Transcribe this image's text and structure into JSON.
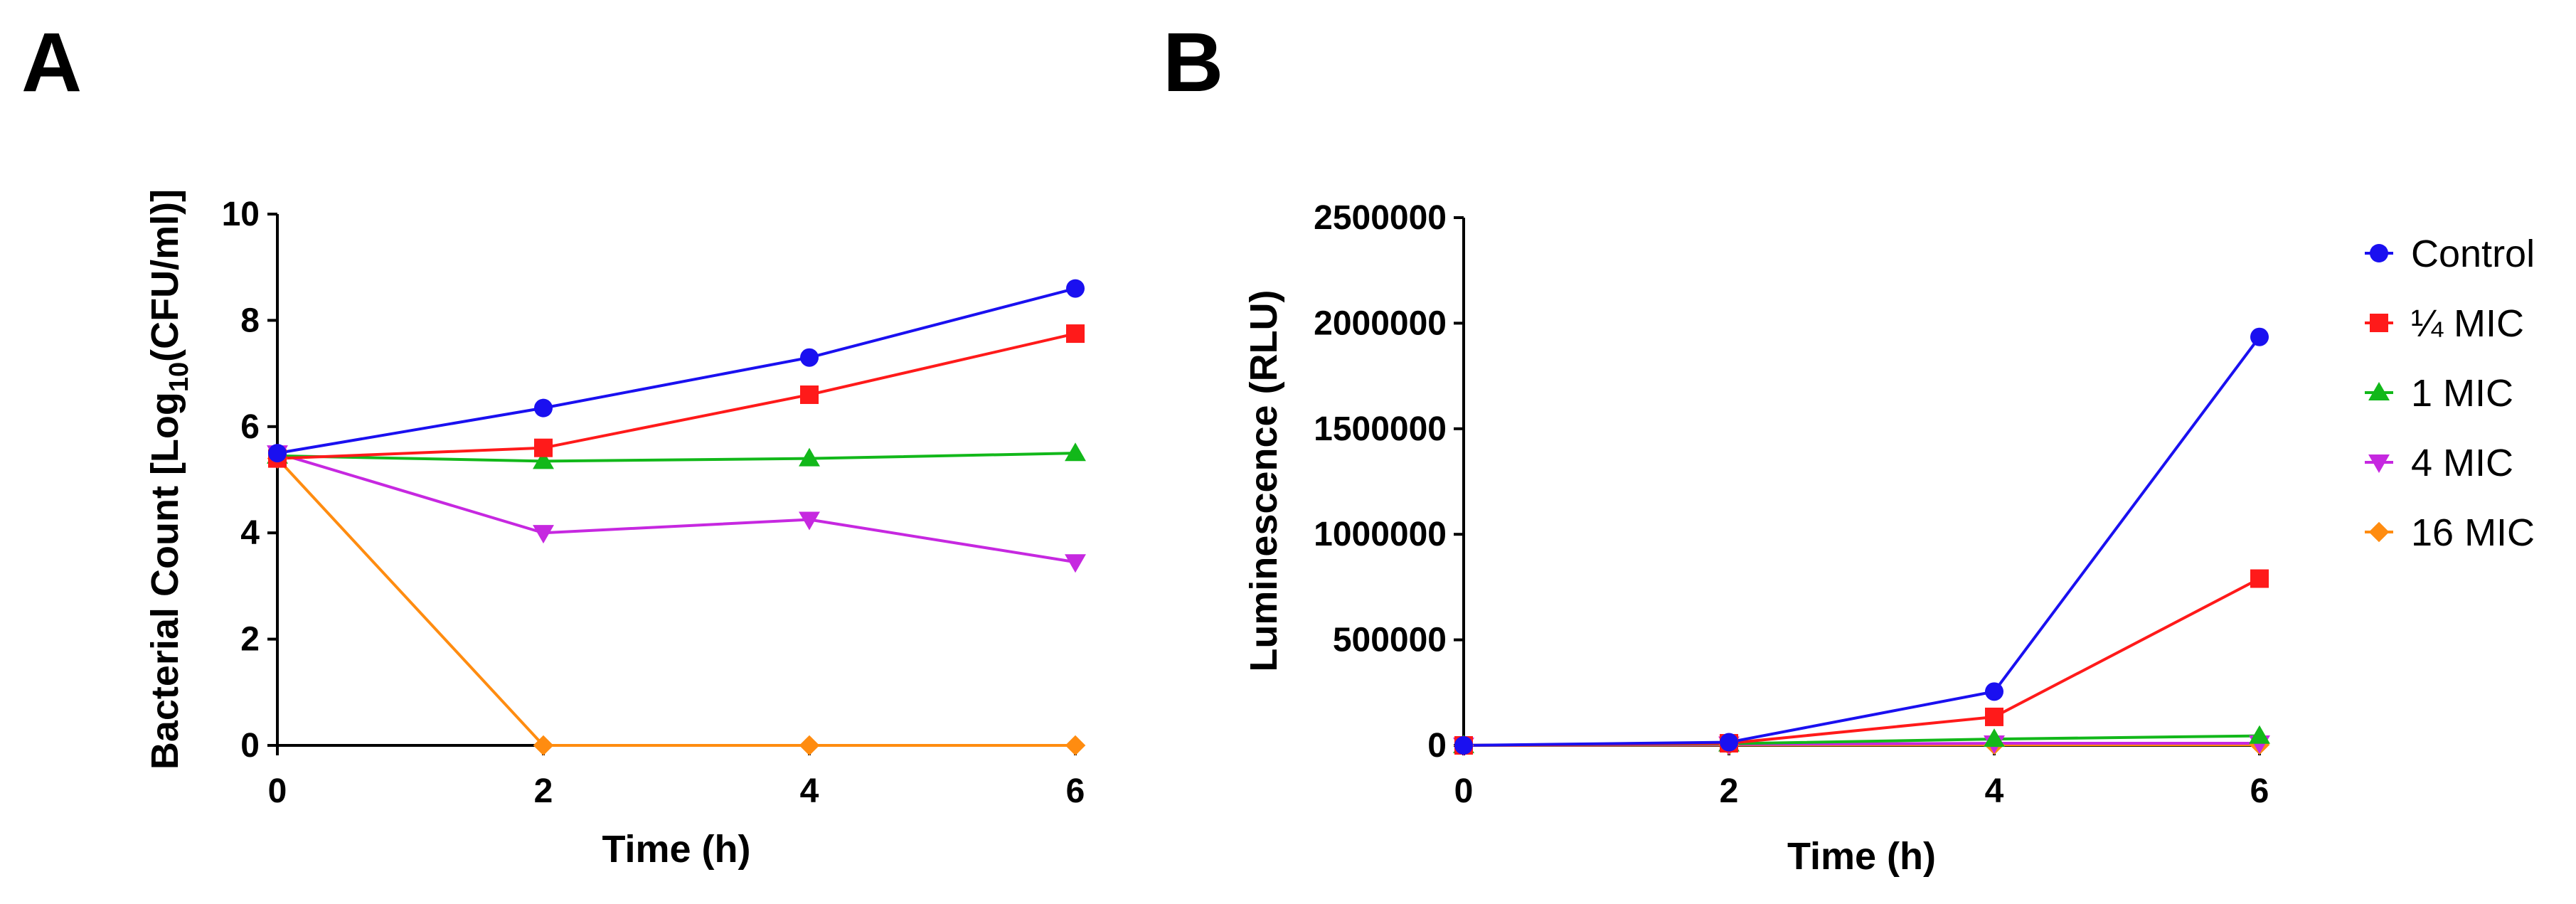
{
  "panels": {
    "a_label": "A",
    "b_label": "B"
  },
  "series_style": [
    {
      "name": "Control",
      "color": "#1a10f0",
      "marker": "circle"
    },
    {
      "name": "¼ MIC",
      "color": "#ff1a1a",
      "marker": "square"
    },
    {
      "name": "1 MIC",
      "color": "#12b81a",
      "marker": "triangle-up"
    },
    {
      "name": "4 MIC",
      "color": "#c628e0",
      "marker": "triangle-down"
    },
    {
      "name": "16 MIC",
      "color": "#ff8c10",
      "marker": "diamond"
    }
  ],
  "legend": {
    "position": "right",
    "entries": [
      "Control",
      "¼ MIC",
      "1 MIC",
      "4 MIC",
      "16 MIC"
    ]
  },
  "chart_data": [
    {
      "type": "line",
      "panel": "A",
      "title": "",
      "xlabel": "Time (h)",
      "ylabel_prefix": "Bacterial Count [Log",
      "ylabel_sub": "10",
      "ylabel_suffix": "(CFU/ml)]",
      "x": [
        0,
        2,
        4,
        6
      ],
      "xlim": [
        0,
        6
      ],
      "ylim": [
        0,
        10
      ],
      "xticks": [
        "0",
        "2",
        "4",
        "6"
      ],
      "yticks": [
        "0",
        "2",
        "4",
        "6",
        "8",
        "10"
      ],
      "grid": false,
      "series": [
        {
          "name": "Control",
          "values": [
            5.5,
            6.35,
            7.3,
            8.6
          ]
        },
        {
          "name": "¼ MIC",
          "values": [
            5.4,
            5.6,
            6.6,
            7.75
          ]
        },
        {
          "name": "1 MIC",
          "values": [
            5.45,
            5.35,
            5.4,
            5.5
          ]
        },
        {
          "name": "4 MIC",
          "values": [
            5.5,
            4.0,
            4.25,
            3.45
          ]
        },
        {
          "name": "16 MIC",
          "values": [
            5.4,
            0,
            0,
            0
          ]
        }
      ]
    },
    {
      "type": "line",
      "panel": "B",
      "title": "",
      "xlabel": "Time (h)",
      "ylabel": "Luminescence (RLU)",
      "x": [
        0,
        2,
        4,
        6
      ],
      "xlim": [
        0,
        6
      ],
      "ylim": [
        0,
        2500000
      ],
      "xticks": [
        "0",
        "2",
        "4",
        "6"
      ],
      "yticks": [
        "0",
        "500000",
        "1000000",
        "1500000",
        "2000000",
        "2500000"
      ],
      "grid": false,
      "series": [
        {
          "name": "Control",
          "values": [
            0,
            15000,
            255000,
            1935000
          ]
        },
        {
          "name": "¼ MIC",
          "values": [
            0,
            10000,
            135000,
            790000
          ]
        },
        {
          "name": "1 MIC",
          "values": [
            0,
            8000,
            30000,
            45000
          ]
        },
        {
          "name": "4 MIC",
          "values": [
            0,
            5000,
            10000,
            10000
          ]
        },
        {
          "name": "16 MIC",
          "values": [
            0,
            2000,
            3000,
            3000
          ]
        }
      ]
    }
  ]
}
